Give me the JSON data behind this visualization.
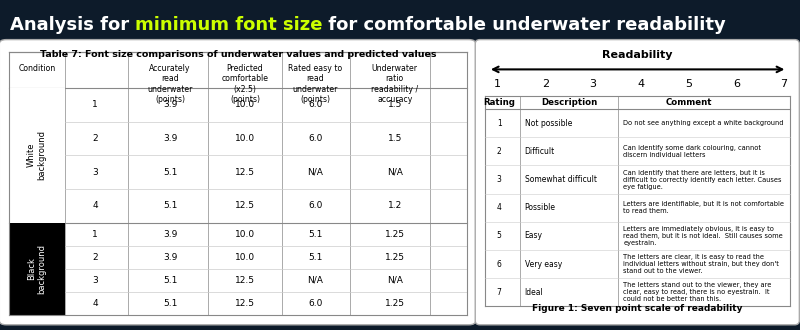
{
  "title_prefix": "Analysis for ",
  "title_highlight": "minimum font size",
  "title_suffix": " for comfortable underwater readability",
  "title_bg": "#0d1b2a",
  "title_fg": "#ffffff",
  "title_highlight_color": "#ccff00",
  "table_title": "Table 7: Font size comparisons of underwater values and predicted values",
  "white_rows": [
    [
      "1",
      "3.9",
      "10.0",
      "6.0",
      "1.5"
    ],
    [
      "2",
      "3.9",
      "10.0",
      "6.0",
      "1.5"
    ],
    [
      "3",
      "5.1",
      "12.5",
      "N/A",
      "N/A"
    ],
    [
      "4",
      "5.1",
      "12.5",
      "6.0",
      "1.2"
    ]
  ],
  "black_rows": [
    [
      "1",
      "3.9",
      "10.0",
      "5.1",
      "1.25"
    ],
    [
      "2",
      "3.9",
      "10.0",
      "5.1",
      "1.25"
    ],
    [
      "3",
      "5.1",
      "12.5",
      "N/A",
      "N/A"
    ],
    [
      "4",
      "5.1",
      "12.5",
      "6.0",
      "1.25"
    ]
  ],
  "right_title": "Readability",
  "right_scale": [
    "1",
    "2",
    "3",
    "4",
    "5",
    "6",
    "7"
  ],
  "right_ratings": [
    [
      "1",
      "Not possible",
      "Do not see anything except a white background"
    ],
    [
      "2",
      "Difficult",
      "Can identify some dark colouring, cannot\ndiscern individual letters"
    ],
    [
      "3",
      "Somewhat difficult",
      "Can identify that there are letters, but it is\ndifficult to correctly identify each letter. Causes\neye fatigue."
    ],
    [
      "4",
      "Possible",
      "Letters are identifiable, but it is not comfortable\nto read them."
    ],
    [
      "5",
      "Easy",
      "Letters are immediately obvious, it is easy to\nread them, but it is not ideal.  Still causes some\neyestrain."
    ],
    [
      "6",
      "Very easy",
      "The letters are clear, it is easy to read the\nindividual letters without strain, but they don't\nstand out to the viewer."
    ],
    [
      "7",
      "Ideal",
      "The letters stand out to the viewer, they are\nclear, easy to read, there is no eyestrain.  It\ncould not be better than this."
    ]
  ],
  "right_caption": "Figure 1: Seven point scale of readability"
}
